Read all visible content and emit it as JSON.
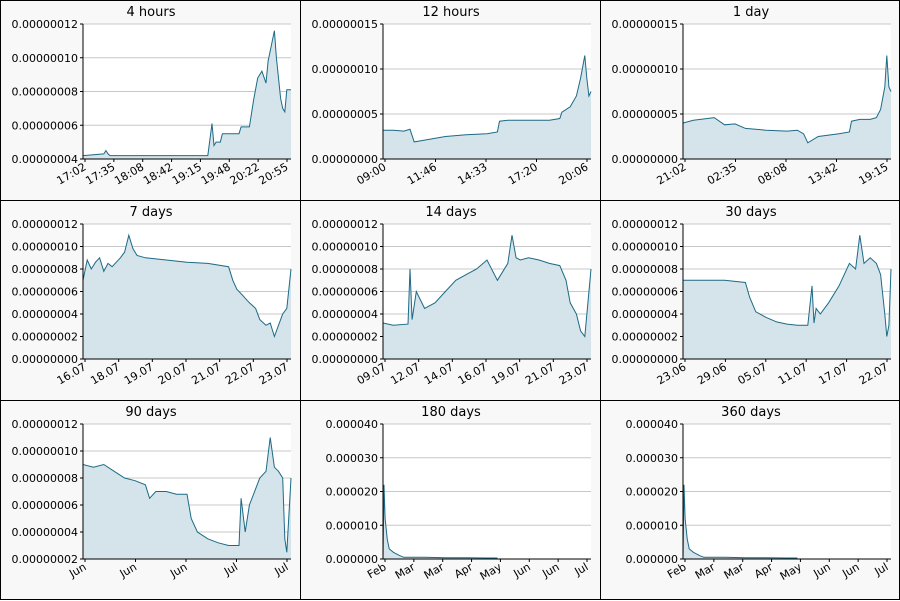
{
  "colors": {
    "line": "#1c6a86",
    "fill": "#d4e4ea",
    "grid": "#c8c8c8",
    "plot_bg": "#ffffff",
    "panel_bg": "#f8f8f8"
  },
  "chart_data": [
    {
      "type": "area",
      "title": "4 hours",
      "ylim": [
        4e-08,
        1.2e-07
      ],
      "yticks": [
        4e-08,
        6e-08,
        8e-08,
        1e-07,
        1.2e-07
      ],
      "ytick_labels": [
        "0.00000004",
        "0.00000006",
        "0.00000008",
        "0.00000010",
        "0.00000012"
      ],
      "xticks": [
        "17:02",
        "17:35",
        "18:08",
        "18:42",
        "19:15",
        "19:48",
        "20:22",
        "20:55"
      ],
      "x": [
        0,
        0.1,
        0.11,
        0.12,
        0.13,
        0.4,
        0.6,
        0.62,
        0.63,
        0.64,
        0.66,
        0.67,
        0.75,
        0.76,
        0.8,
        0.82,
        0.84,
        0.86,
        0.88,
        0.89,
        0.9,
        0.92,
        0.93,
        0.94,
        0.95,
        0.96,
        0.97,
        0.98,
        1.0
      ],
      "y": [
        4.2e-08,
        4.3e-08,
        4.5e-08,
        4.3e-08,
        4.2e-08,
        4.2e-08,
        4.2e-08,
        6.1e-08,
        4.8e-08,
        5e-08,
        5e-08,
        5.5e-08,
        5.5e-08,
        5.9e-08,
        5.9e-08,
        7.5e-08,
        8.8e-08,
        9.2e-08,
        8.5e-08,
        9.8e-08,
        1.04e-07,
        1.16e-07,
        1e-07,
        8.8e-08,
        7.6e-08,
        7e-08,
        6.8e-08,
        8.1e-08,
        8.1e-08
      ]
    },
    {
      "type": "area",
      "title": "12 hours",
      "ylim": [
        0.0,
        1.5e-07
      ],
      "yticks": [
        0.0,
        5e-08,
        1e-07,
        1.5e-07
      ],
      "ytick_labels": [
        "0.00000000",
        "0.00000005",
        "0.00000010",
        "0.00000015"
      ],
      "xticks": [
        "09:00",
        "11:46",
        "14:33",
        "17:20",
        "20:06"
      ],
      "x": [
        0,
        0.05,
        0.1,
        0.13,
        0.15,
        0.2,
        0.3,
        0.4,
        0.5,
        0.55,
        0.56,
        0.6,
        0.7,
        0.8,
        0.85,
        0.86,
        0.9,
        0.93,
        0.95,
        0.97,
        0.98,
        0.99,
        1.0
      ],
      "y": [
        3.2e-08,
        3.2e-08,
        3.1e-08,
        3.3e-08,
        1.9e-08,
        2.1e-08,
        2.5e-08,
        2.7e-08,
        2.8e-08,
        3e-08,
        4.2e-08,
        4.3e-08,
        4.3e-08,
        4.3e-08,
        4.5e-08,
        5.2e-08,
        5.8e-08,
        7e-08,
        9e-08,
        1.15e-07,
        9e-08,
        7e-08,
        7.5e-08
      ]
    },
    {
      "type": "area",
      "title": "1 day",
      "ylim": [
        0.0,
        1.5e-07
      ],
      "yticks": [
        0.0,
        5e-08,
        1e-07,
        1.5e-07
      ],
      "ytick_labels": [
        "0.00000000",
        "0.00000005",
        "0.00000010",
        "0.00000015"
      ],
      "xticks": [
        "21:02",
        "02:35",
        "08:08",
        "13:42",
        "19:15"
      ],
      "x": [
        0,
        0.05,
        0.15,
        0.2,
        0.25,
        0.3,
        0.4,
        0.5,
        0.55,
        0.58,
        0.6,
        0.65,
        0.75,
        0.8,
        0.81,
        0.85,
        0.9,
        0.93,
        0.95,
        0.97,
        0.98,
        0.99,
        1.0
      ],
      "y": [
        4e-08,
        4.3e-08,
        4.6e-08,
        3.8e-08,
        3.9e-08,
        3.4e-08,
        3.2e-08,
        3.1e-08,
        3.2e-08,
        2.8e-08,
        1.8e-08,
        2.5e-08,
        2.8e-08,
        3e-08,
        4.2e-08,
        4.4e-08,
        4.4e-08,
        4.6e-08,
        5.5e-08,
        8e-08,
        1.15e-07,
        8e-08,
        7.5e-08
      ]
    },
    {
      "type": "area",
      "title": "7 days",
      "ylim": [
        0.0,
        1.2e-07
      ],
      "yticks": [
        0.0,
        2e-08,
        4e-08,
        6e-08,
        8e-08,
        1e-07,
        1.2e-07
      ],
      "ytick_labels": [
        "0.00000000",
        "0.00000002",
        "0.00000004",
        "0.00000006",
        "0.00000008",
        "0.00000010",
        "0.00000012"
      ],
      "xticks": [
        "16.07",
        "18.07",
        "19.07",
        "20.07",
        "21.07",
        "22.07",
        "23.07"
      ],
      "x": [
        0,
        0.02,
        0.04,
        0.06,
        0.08,
        0.1,
        0.12,
        0.14,
        0.16,
        0.18,
        0.2,
        0.22,
        0.24,
        0.26,
        0.3,
        0.4,
        0.5,
        0.6,
        0.7,
        0.72,
        0.74,
        0.76,
        0.8,
        0.83,
        0.85,
        0.88,
        0.9,
        0.92,
        0.94,
        0.96,
        0.98,
        1.0
      ],
      "y": [
        7e-08,
        8.8e-08,
        8e-08,
        8.6e-08,
        9e-08,
        7.8e-08,
        8.5e-08,
        8.2e-08,
        8.6e-08,
        9e-08,
        9.5e-08,
        1.1e-07,
        9.8e-08,
        9.2e-08,
        9e-08,
        8.8e-08,
        8.6e-08,
        8.5e-08,
        8.2e-08,
        7e-08,
        6.2e-08,
        5.8e-08,
        5e-08,
        4.5e-08,
        3.5e-08,
        3e-08,
        3.2e-08,
        2e-08,
        3e-08,
        4e-08,
        4.5e-08,
        8e-08
      ]
    },
    {
      "type": "area",
      "title": "14 days",
      "ylim": [
        0.0,
        1.2e-07
      ],
      "yticks": [
        0.0,
        2e-08,
        4e-08,
        6e-08,
        8e-08,
        1e-07,
        1.2e-07
      ],
      "ytick_labels": [
        "0.00000000",
        "0.00000002",
        "0.00000004",
        "0.00000006",
        "0.00000008",
        "0.00000010",
        "0.00000012"
      ],
      "xticks": [
        "09.07",
        "12.07",
        "14.07",
        "16.07",
        "19.07",
        "21.07",
        "23.07"
      ],
      "x": [
        0,
        0.05,
        0.12,
        0.13,
        0.14,
        0.16,
        0.2,
        0.25,
        0.3,
        0.35,
        0.4,
        0.45,
        0.5,
        0.55,
        0.6,
        0.62,
        0.64,
        0.66,
        0.7,
        0.75,
        0.8,
        0.85,
        0.88,
        0.9,
        0.93,
        0.95,
        0.97,
        1.0
      ],
      "y": [
        3.2e-08,
        3e-08,
        3.1e-08,
        8e-08,
        3.5e-08,
        6e-08,
        4.5e-08,
        5e-08,
        6e-08,
        7e-08,
        7.5e-08,
        8e-08,
        8.8e-08,
        7e-08,
        8.5e-08,
        1.1e-07,
        9e-08,
        8.8e-08,
        9e-08,
        8.8e-08,
        8.5e-08,
        8.3e-08,
        7e-08,
        5e-08,
        4e-08,
        2.5e-08,
        2e-08,
        8e-08
      ]
    },
    {
      "type": "area",
      "title": "30 days",
      "ylim": [
        0.0,
        1.2e-07
      ],
      "yticks": [
        0.0,
        2e-08,
        4e-08,
        6e-08,
        8e-08,
        1e-07,
        1.2e-07
      ],
      "ytick_labels": [
        "0.00000000",
        "0.00000002",
        "0.00000004",
        "0.00000006",
        "0.00000008",
        "0.00000010",
        "0.00000012"
      ],
      "xticks": [
        "23.06",
        "29.06",
        "05.07",
        "11.07",
        "17.07",
        "22.07"
      ],
      "x": [
        0,
        0.1,
        0.2,
        0.3,
        0.32,
        0.35,
        0.4,
        0.45,
        0.5,
        0.55,
        0.6,
        0.62,
        0.63,
        0.64,
        0.66,
        0.7,
        0.75,
        0.8,
        0.83,
        0.85,
        0.87,
        0.9,
        0.93,
        0.95,
        0.97,
        0.98,
        0.99,
        1.0
      ],
      "y": [
        7e-08,
        7e-08,
        7e-08,
        6.8e-08,
        5.5e-08,
        4.2e-08,
        3.7e-08,
        3.3e-08,
        3.1e-08,
        3e-08,
        3e-08,
        6.5e-08,
        3.2e-08,
        4.5e-08,
        4e-08,
        5e-08,
        6.5e-08,
        8.5e-08,
        8e-08,
        1.1e-07,
        8.5e-08,
        9e-08,
        8.5e-08,
        7.5e-08,
        4e-08,
        2e-08,
        3e-08,
        8e-08
      ]
    },
    {
      "type": "area",
      "title": "90 days",
      "ylim": [
        2e-08,
        1.2e-07
      ],
      "yticks": [
        2e-08,
        4e-08,
        6e-08,
        8e-08,
        1e-07,
        1.2e-07
      ],
      "ytick_labels": [
        "0.00000002",
        "0.00000004",
        "0.00000006",
        "0.00000008",
        "0.00000010",
        "0.00000012"
      ],
      "xticks": [
        "Jun",
        "Jun",
        "Jun",
        "Jul",
        "Jul"
      ],
      "x": [
        0,
        0.05,
        0.1,
        0.15,
        0.2,
        0.25,
        0.3,
        0.32,
        0.35,
        0.4,
        0.45,
        0.5,
        0.52,
        0.55,
        0.6,
        0.65,
        0.7,
        0.75,
        0.76,
        0.78,
        0.8,
        0.85,
        0.88,
        0.9,
        0.92,
        0.94,
        0.96,
        0.97,
        0.98,
        1.0
      ],
      "y": [
        9e-08,
        8.8e-08,
        9e-08,
        8.5e-08,
        8e-08,
        7.8e-08,
        7.5e-08,
        6.5e-08,
        7e-08,
        7e-08,
        6.8e-08,
        6.8e-08,
        5e-08,
        4e-08,
        3.5e-08,
        3.2e-08,
        3e-08,
        3e-08,
        6.5e-08,
        4e-08,
        6e-08,
        8e-08,
        8.5e-08,
        1.1e-07,
        8.8e-08,
        8.5e-08,
        8e-08,
        3.5e-08,
        2.5e-08,
        8e-08
      ]
    },
    {
      "type": "area",
      "title": "180 days",
      "ylim": [
        0.0,
        4e-05
      ],
      "yticks": [
        0.0,
        1e-05,
        2e-05,
        3e-05,
        4e-05
      ],
      "ytick_labels": [
        "0.000000",
        "0.000010",
        "0.000020",
        "0.000030",
        "0.000040"
      ],
      "xticks": [
        "Feb",
        "Mar",
        "Mar",
        "Apr",
        "May",
        "Jun",
        "Jun",
        "Jul"
      ],
      "x": [
        0,
        0.005,
        0.01,
        0.02,
        0.03,
        0.05,
        0.08,
        0.1,
        0.15,
        0.2,
        0.3,
        0.4,
        0.5,
        0.55
      ],
      "y": [
        0.0,
        2.2e-05,
        1.2e-05,
        6e-06,
        3e-06,
        2e-06,
        1e-06,
        5e-07,
        5e-07,
        5e-07,
        4e-07,
        4e-07,
        3e-07,
        3e-07
      ]
    },
    {
      "type": "area",
      "title": "360 days",
      "ylim": [
        0.0,
        4e-05
      ],
      "yticks": [
        0.0,
        1e-05,
        2e-05,
        3e-05,
        4e-05
      ],
      "ytick_labels": [
        "0.000000",
        "0.000010",
        "0.000020",
        "0.000030",
        "0.000040"
      ],
      "xticks": [
        "Feb",
        "Mar",
        "Mar",
        "Apr",
        "May",
        "Jun",
        "Jun",
        "Jul"
      ],
      "x": [
        0,
        0.005,
        0.01,
        0.02,
        0.03,
        0.05,
        0.08,
        0.1,
        0.15,
        0.2,
        0.3,
        0.4,
        0.5,
        0.55
      ],
      "y": [
        0.0,
        2.2e-05,
        1.2e-05,
        6e-06,
        3e-06,
        2e-06,
        1e-06,
        5e-07,
        5e-07,
        5e-07,
        4e-07,
        4e-07,
        3e-07,
        3e-07
      ]
    }
  ]
}
